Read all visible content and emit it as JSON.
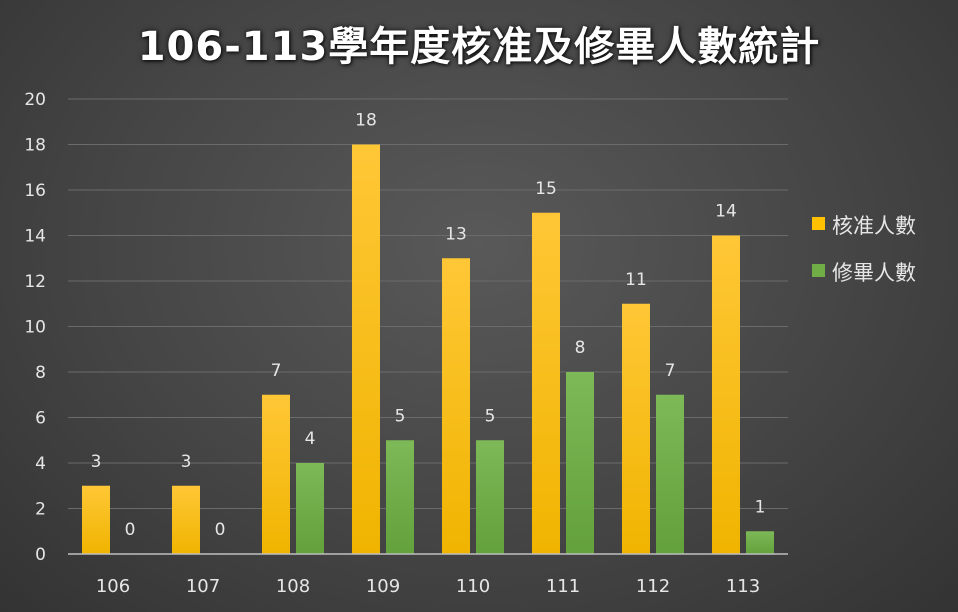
{
  "chart_data": {
    "type": "bar",
    "title": "106-113學年度核准及修畢人數統計",
    "categories": [
      "106",
      "107",
      "108",
      "109",
      "110",
      "111",
      "112",
      "113"
    ],
    "series": [
      {
        "name": "核准人數",
        "values": [
          3,
          3,
          7,
          18,
          13,
          15,
          11,
          14
        ],
        "color": "#FFC000"
      },
      {
        "name": "修畢人數",
        "values": [
          0,
          0,
          4,
          5,
          5,
          8,
          7,
          1
        ],
        "color": "#70AD47"
      }
    ],
    "ylim": [
      0,
      20
    ],
    "yticks": [
      0,
      2,
      4,
      6,
      8,
      10,
      12,
      14,
      16,
      18,
      20
    ],
    "grid": true,
    "legend_position": "right",
    "xlabel": "",
    "ylabel": ""
  }
}
